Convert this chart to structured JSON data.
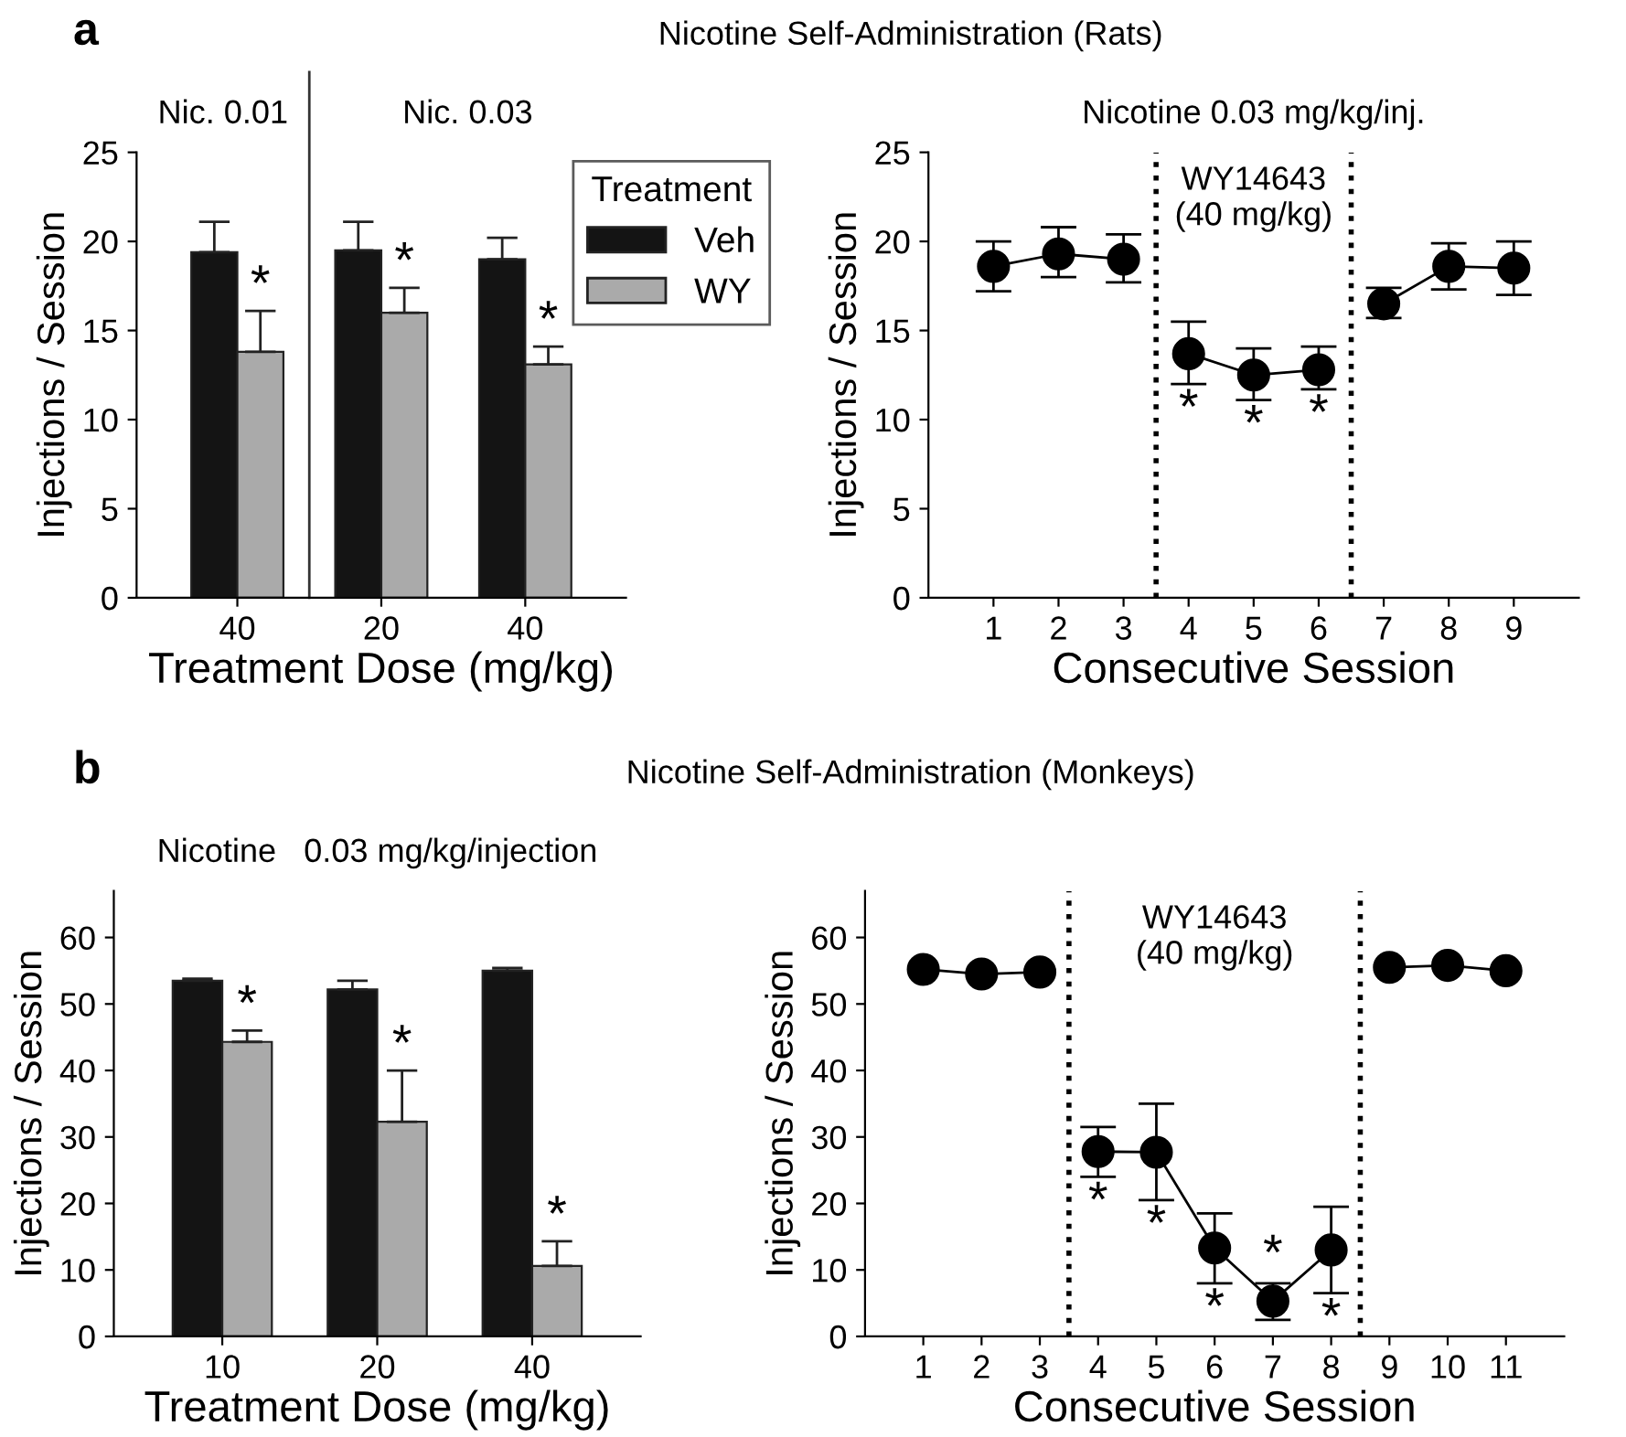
{
  "chart_data": [
    {
      "type": "bar",
      "title": "a",
      "xlabel": "Treatment Dose (mg/kg)",
      "ylabel": "Injections / Session",
      "categories": [
        "40",
        "20",
        "40"
      ],
      "series": [
        {
          "name": "Veh",
          "color": "#141414",
          "values": [
            19.4,
            19.5,
            19.0
          ],
          "errors": [
            [
              19.4,
              21.1
            ],
            [
              19.5,
              21.1
            ],
            [
              19.0,
              20.2
            ]
          ]
        },
        {
          "name": "WY",
          "color": "#aaaaaa",
          "values": [
            13.8,
            16.0,
            13.1
          ],
          "errors": [
            [
              13.8,
              16.1
            ],
            [
              16.0,
              17.4
            ],
            [
              13.1,
              14.1
            ]
          ],
          "value_labels": [
            "*",
            "*",
            "*"
          ]
        }
      ],
      "ylim": [
        0,
        25
      ],
      "yticks": [
        0,
        5,
        10,
        15,
        20,
        25
      ],
      "legend": "top right",
      "legend_title": "Treatment",
      "annotations": [
        "Nic. 0.01",
        "Nic. 0.03"
      ]
    },
    {
      "type": "line",
      "title": "Nicotine Self-Administration (Rats)",
      "subtitle": "Nicotine 0.03 mg/kg/inj.",
      "xlabel": "Consecutive Session",
      "ylabel": "Injections / Session",
      "marker": "circle",
      "line_style": "solid",
      "series": [
        {
          "color": "#000000",
          "x": [
            1,
            2,
            3
          ],
          "values": [
            18.6,
            19.3,
            19.0
          ],
          "errors": [
            [
              17.2,
              20.0
            ],
            [
              18.0,
              20.8
            ],
            [
              17.7,
              20.4
            ]
          ]
        },
        {
          "color": "#000000",
          "x": [
            4,
            5,
            6
          ],
          "values": [
            13.7,
            12.5,
            12.8
          ],
          "errors": [
            [
              12.0,
              15.5
            ],
            [
              11.1,
              14.0
            ],
            [
              11.7,
              14.1
            ]
          ],
          "value_labels": [
            "*",
            "*",
            "*"
          ]
        },
        {
          "color": "#000000",
          "x": [
            7,
            8,
            9
          ],
          "values": [
            16.5,
            18.6,
            18.5
          ],
          "errors": [
            [
              15.7,
              17.4
            ],
            [
              17.3,
              19.9
            ],
            [
              17.0,
              20.0
            ]
          ]
        }
      ],
      "xlim": [
        0,
        10
      ],
      "xticks": [
        1,
        2,
        3,
        4,
        5,
        6,
        7,
        8,
        9
      ],
      "ylim": [
        0,
        25
      ],
      "yticks": [
        0,
        5,
        10,
        15,
        20,
        25
      ],
      "ref_lines": [
        {
          "axis": "x",
          "value": 3.5,
          "line_style": "dotted"
        },
        {
          "axis": "x",
          "value": 6.5,
          "line_style": "dotted"
        }
      ],
      "annotations": [
        "WY14643\n(40 mg/kg)"
      ]
    },
    {
      "type": "bar",
      "title": "b",
      "subtitle": "Nicotine   0.03 mg/kg/injection",
      "xlabel": "Treatment Dose (mg/kg)",
      "ylabel": "Injections / Session",
      "categories": [
        "10",
        "20",
        "40"
      ],
      "series": [
        {
          "color": "#141414",
          "values": [
            53.5,
            52.2,
            55.0
          ],
          "errors": [
            [
              53.5,
              53.8
            ],
            [
              52.2,
              53.5
            ],
            [
              55.0,
              55.4
            ]
          ]
        },
        {
          "color": "#aaaaaa",
          "values": [
            44.3,
            32.3,
            10.6
          ],
          "errors": [
            [
              44.3,
              46.0
            ],
            [
              32.3,
              40.0
            ],
            [
              10.6,
              14.3
            ]
          ],
          "value_labels": [
            "*",
            "*",
            "*"
          ]
        }
      ],
      "ylim": [
        0,
        67
      ],
      "yticks": [
        0,
        10,
        20,
        30,
        40,
        50,
        60
      ]
    },
    {
      "type": "line",
      "title": "Nicotine Self-Administration (Monkeys)",
      "xlabel": "Consecutive Session",
      "ylabel": "Injections / Session",
      "marker": "circle",
      "line_style": "solid",
      "series": [
        {
          "color": "#000000",
          "x": [
            1,
            2,
            3
          ],
          "values": [
            55.2,
            54.5,
            54.8
          ]
        },
        {
          "color": "#000000",
          "x": [
            4,
            5,
            6,
            7,
            8
          ],
          "values": [
            27.8,
            27.7,
            13.3,
            5.3,
            13.0
          ],
          "errors": [
            [
              24.0,
              31.5
            ],
            [
              20.5,
              35.0
            ],
            [
              8.0,
              18.5
            ],
            [
              2.5,
              8.0
            ],
            [
              6.5,
              19.5
            ]
          ],
          "value_labels": [
            "*",
            "*",
            "*",
            "*",
            "*"
          ]
        },
        {
          "color": "#000000",
          "x": [
            9,
            10,
            11
          ],
          "values": [
            55.5,
            55.8,
            55.0
          ]
        }
      ],
      "xlim": [
        0,
        12
      ],
      "xticks": [
        1,
        2,
        3,
        4,
        5,
        6,
        7,
        8,
        9,
        10,
        11
      ],
      "ylim": [
        0,
        67
      ],
      "yticks": [
        0,
        10,
        20,
        30,
        40,
        50,
        60
      ],
      "ref_lines": [
        {
          "axis": "x",
          "value": 3.5,
          "line_style": "dotted"
        },
        {
          "axis": "x",
          "value": 8.5,
          "line_style": "dotted"
        }
      ],
      "annotations": [
        "WY14643\n(40 mg/kg)"
      ]
    }
  ]
}
